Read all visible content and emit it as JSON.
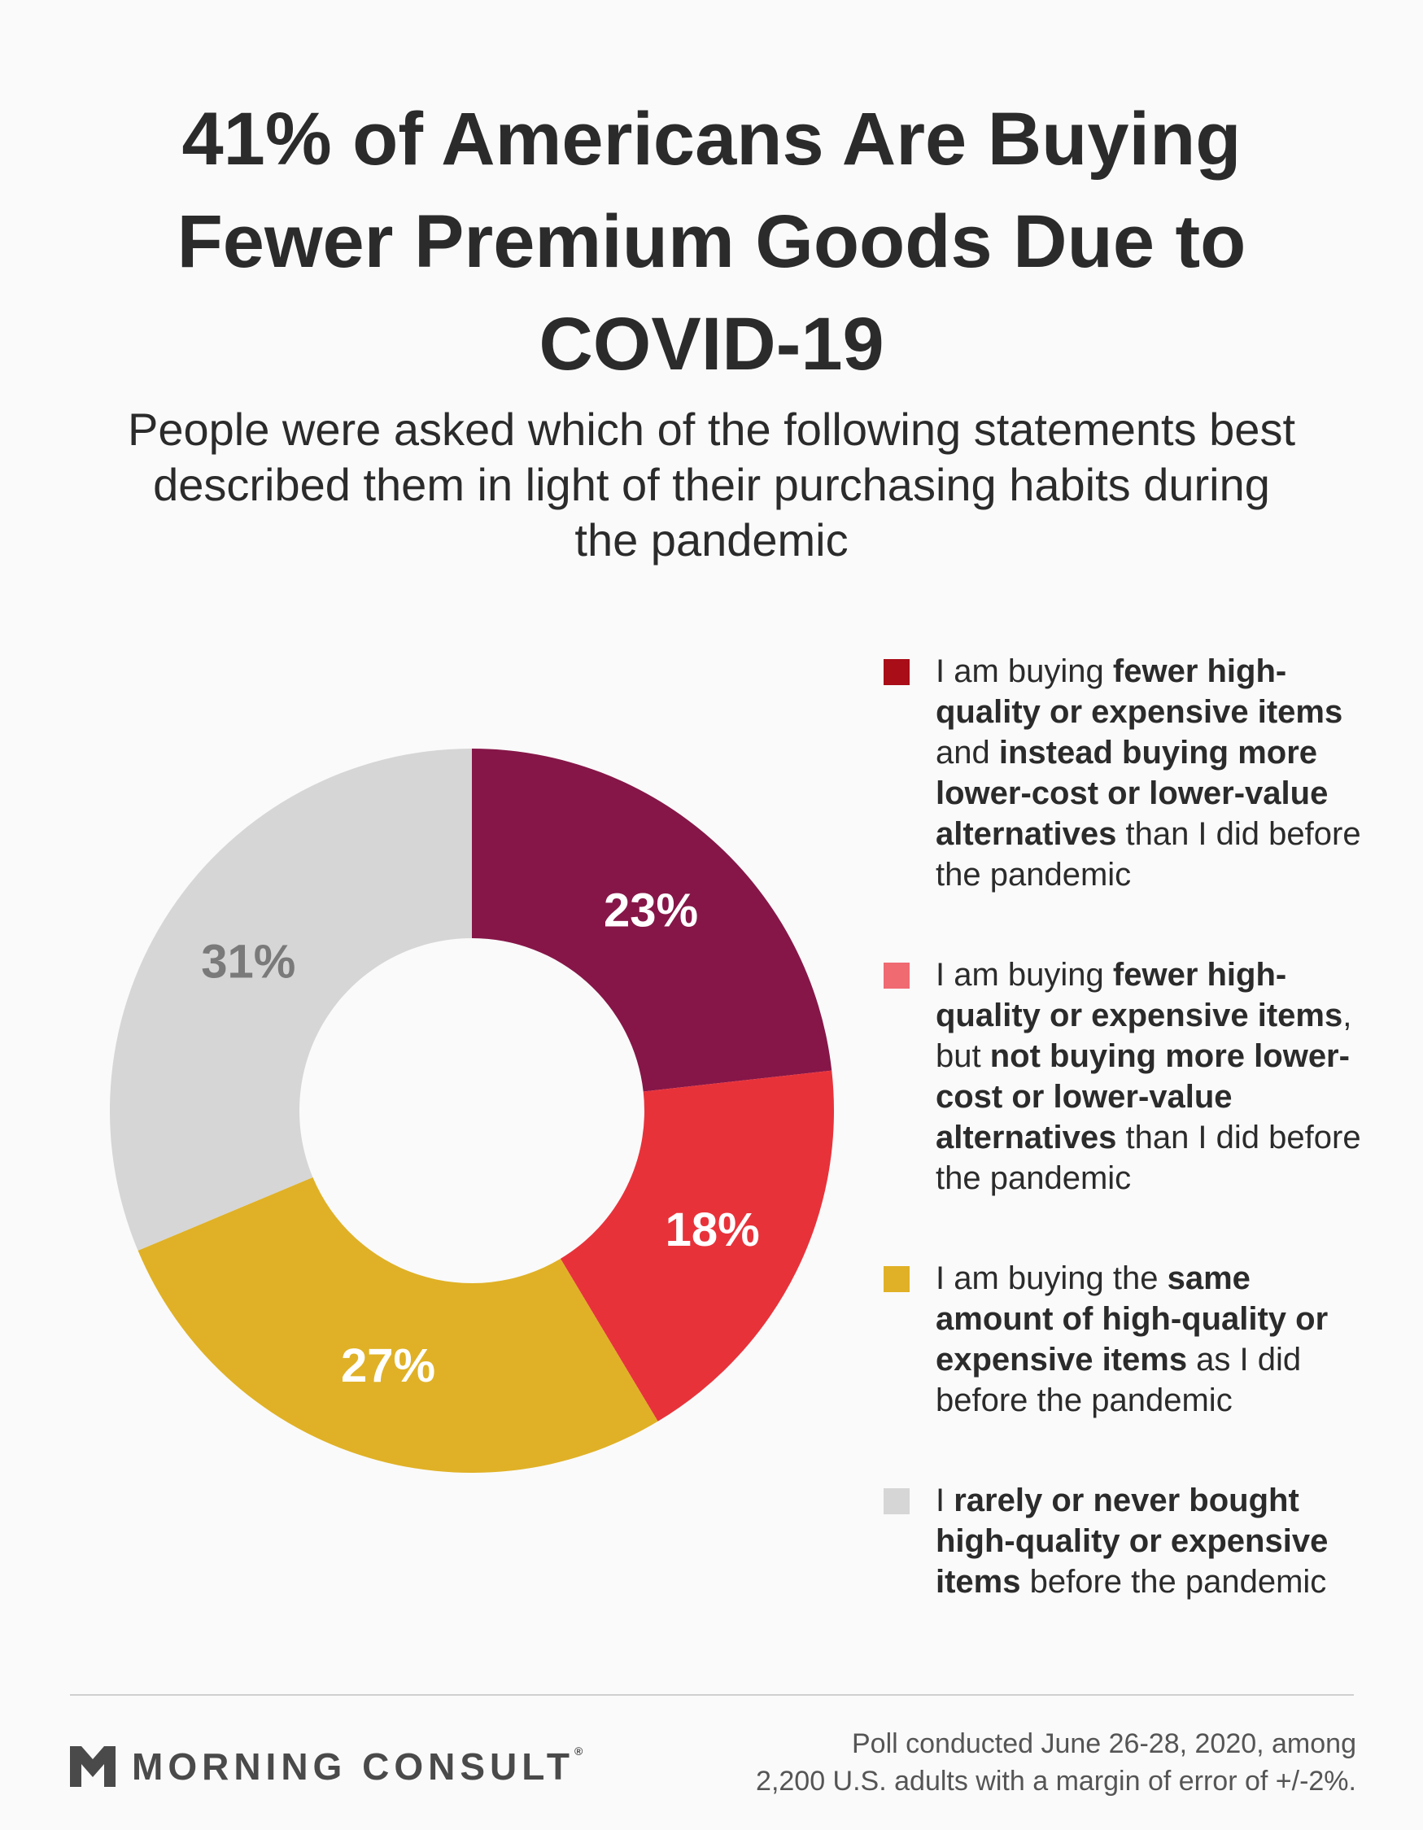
{
  "title": "41% of Americans Are Buying Fewer Premium Goods Due to COVID-19",
  "subtitle": "People were asked which of the following statements best described them in light of their purchasing habits during the pandemic",
  "chart_data": {
    "type": "pie",
    "title": "41% of Americans Are Buying Fewer Premium Goods Due to COVID-19",
    "subtitle": "People were asked which of the following statements best described them in light of their purchasing habits during the pandemic",
    "donut": true,
    "legend_position": "right",
    "slices": [
      {
        "value": 23,
        "label": "23%",
        "color": "#861648",
        "label_color": "#ffffff",
        "name": "I am buying fewer high-quality or expensive items and instead buying more lower-cost or lower-value alternatives than I did before the pandemic"
      },
      {
        "value": 18,
        "label": "18%",
        "color": "#e8323a",
        "label_color": "#ffffff",
        "name": "I am buying fewer high-quality or expensive items, but not buying more lower-cost or lower-value alternatives than I did before the pandemic"
      },
      {
        "value": 27,
        "label": "27%",
        "color": "#e0b126",
        "label_color": "#ffffff",
        "name": "I am buying the same amount of high-quality or expensive items as I did before the pandemic"
      },
      {
        "value": 31,
        "label": "31%",
        "color": "#d6d6d6",
        "label_color": "#7a7a7a",
        "name": "I rarely or never bought high-quality or expensive items before the pandemic"
      }
    ]
  },
  "legend": [
    {
      "color": "#a80d18",
      "parts": [
        [
          "I am buying ",
          false
        ],
        [
          "fewer high-quality or expensive items",
          true
        ],
        [
          " and ",
          false
        ],
        [
          "instead buying more lower-cost or lower-value alternatives",
          true
        ],
        [
          " than I did before the pandemic",
          false
        ]
      ]
    },
    {
      "color": "#f06a72",
      "parts": [
        [
          "I am buying ",
          false
        ],
        [
          "fewer high-quality or expensive items",
          true
        ],
        [
          ", but ",
          false
        ],
        [
          "not buying more lower-cost or lower-value alternatives",
          true
        ],
        [
          " than I did before the pandemic",
          false
        ]
      ]
    },
    {
      "color": "#e0b126",
      "parts": [
        [
          "I am buying the ",
          false
        ],
        [
          "same amount of high-quality or expensive items",
          true
        ],
        [
          " as I did before the pandemic",
          false
        ]
      ]
    },
    {
      "color": "#d6d6d6",
      "parts": [
        [
          "I ",
          false
        ],
        [
          "rarely or never bought high-quality or expensive items",
          true
        ],
        [
          " before the pandemic",
          false
        ]
      ]
    }
  ],
  "footer": {
    "brand": "MORNING CONSULT",
    "brand_mark": "®",
    "note_line1": "Poll conducted June 26-28, 2020, among",
    "note_line2": "2,200 U.S. adults with a margin of error of +/-2%."
  }
}
